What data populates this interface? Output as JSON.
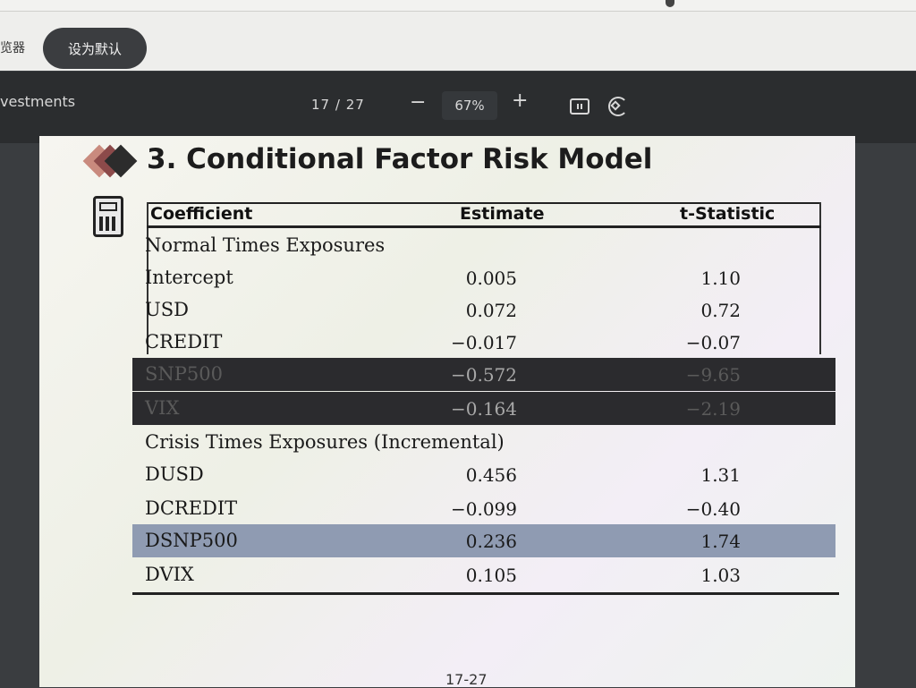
{
  "settings_bar": {
    "left_text": "览器",
    "default_button": "设为默认"
  },
  "viewer": {
    "doc_name": "vestments",
    "current_page": "17",
    "total_pages": "27",
    "page_separator": "/",
    "zoom": "67%",
    "zoom_minus": "−",
    "zoom_plus": "+",
    "icons": [
      "fit-page-icon",
      "rotate-icon"
    ]
  },
  "slide": {
    "title": "3. Conditional Factor Risk Model",
    "page_footer": "17-27",
    "table": {
      "headers": [
        "Coefficient",
        "Estimate",
        "t-Statistic"
      ],
      "rows": [
        {
          "label": "Normal Times Exposures",
          "estimate": "",
          "t": "",
          "style": "section"
        },
        {
          "label": "Intercept",
          "estimate": "0.005",
          "t": "1.10",
          "style": "normal"
        },
        {
          "label": "USD",
          "estimate": "0.072",
          "t": "0.72",
          "style": "normal"
        },
        {
          "label": "CREDIT",
          "estimate": "−0.017",
          "t": "−0.07",
          "style": "normal"
        },
        {
          "label": "SNP500",
          "estimate": "−0.572",
          "t": "−9.65",
          "style": "dark"
        },
        {
          "label": "VIX",
          "estimate": "−0.164",
          "t": "−2.19",
          "style": "dark"
        },
        {
          "label": "Crisis Times Exposures (Incremental)",
          "estimate": "",
          "t": "",
          "style": "section"
        },
        {
          "label": "DUSD",
          "estimate": "0.456",
          "t": "1.31",
          "style": "normal"
        },
        {
          "label": "DCREDIT",
          "estimate": "−0.099",
          "t": "−0.40",
          "style": "normal"
        },
        {
          "label": "DSNP500",
          "estimate": "0.236",
          "t": "1.74",
          "style": "blue"
        },
        {
          "label": "DVIX",
          "estimate": "0.105",
          "t": "1.03",
          "style": "normal"
        }
      ]
    }
  }
}
